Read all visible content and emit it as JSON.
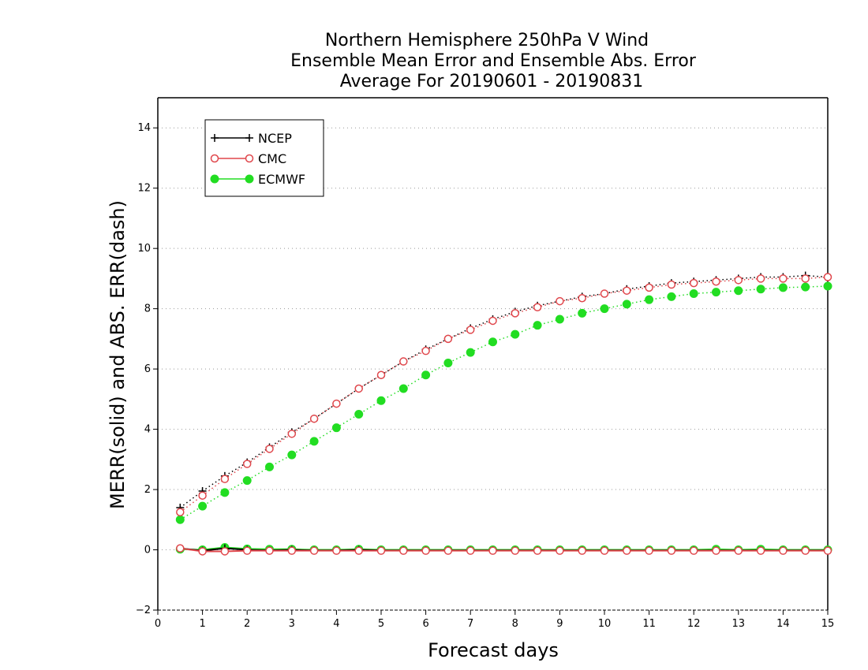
{
  "chart_data": {
    "type": "line",
    "title_lines": [
      "Northern Hemisphere 250hPa V Wind",
      "Ensemble Mean Error and Ensemble Abs. Error",
      "Average For 20190601 - 20190831"
    ],
    "xlabel": "Forecast days",
    "ylabel": "MERR(solid) and ABS. ERR(dash)",
    "xlim": [
      0,
      15
    ],
    "ylim": [
      -2,
      15
    ],
    "x_ticks": [
      0,
      1,
      2,
      3,
      4,
      5,
      6,
      7,
      8,
      9,
      10,
      11,
      12,
      13,
      14,
      15
    ],
    "y_ticks": [
      -2,
      0,
      2,
      4,
      6,
      8,
      10,
      12,
      14
    ],
    "grid": "horizontal dotted",
    "legend": {
      "position": "top-left",
      "entries": [
        "NCEP",
        "CMC",
        "ECMWF"
      ]
    },
    "x": [
      0.5,
      1,
      1.5,
      2,
      2.5,
      3,
      3.5,
      4,
      4.5,
      5,
      5.5,
      6,
      6.5,
      7,
      7.5,
      8,
      8.5,
      9,
      9.5,
      10,
      10.5,
      11,
      11.5,
      12,
      12.5,
      13,
      13.5,
      14,
      14.5,
      15
    ],
    "series": [
      {
        "name": "NCEP",
        "color": "#000000",
        "marker": "plus",
        "abs_err": [
          1.4,
          1.95,
          2.45,
          2.9,
          3.4,
          3.9,
          4.35,
          4.85,
          5.35,
          5.8,
          6.25,
          6.65,
          7.0,
          7.35,
          7.65,
          7.9,
          8.1,
          8.25,
          8.4,
          8.5,
          8.65,
          8.75,
          8.85,
          8.9,
          8.95,
          9.0,
          9.05,
          9.05,
          9.1,
          9.05
        ],
        "mean_err": [
          0.05,
          -0.03,
          0.05,
          0.0,
          -0.02,
          0.0,
          -0.02,
          -0.02,
          0.0,
          -0.02,
          -0.02,
          -0.02,
          -0.02,
          -0.02,
          -0.02,
          -0.02,
          -0.02,
          -0.02,
          -0.02,
          -0.02,
          -0.02,
          -0.02,
          -0.02,
          -0.02,
          -0.02,
          -0.02,
          -0.02,
          -0.02,
          -0.02,
          -0.02
        ]
      },
      {
        "name": "CMC",
        "color": "#e0474c",
        "marker": "open-circle",
        "abs_err": [
          1.25,
          1.8,
          2.35,
          2.85,
          3.35,
          3.85,
          4.35,
          4.85,
          5.35,
          5.8,
          6.25,
          6.6,
          7.0,
          7.3,
          7.6,
          7.85,
          8.05,
          8.25,
          8.35,
          8.5,
          8.6,
          8.7,
          8.8,
          8.85,
          8.9,
          8.95,
          9.0,
          9.0,
          9.0,
          9.05
        ],
        "mean_err": [
          0.05,
          -0.05,
          -0.05,
          -0.03,
          -0.03,
          -0.03,
          -0.03,
          -0.03,
          -0.03,
          -0.03,
          -0.03,
          -0.03,
          -0.03,
          -0.03,
          -0.03,
          -0.03,
          -0.03,
          -0.03,
          -0.03,
          -0.03,
          -0.03,
          -0.03,
          -0.03,
          -0.03,
          -0.03,
          -0.03,
          -0.03,
          -0.03,
          -0.03,
          -0.03
        ]
      },
      {
        "name": "ECMWF",
        "color": "#22dd22",
        "marker": "filled-circle",
        "abs_err": [
          1.0,
          1.45,
          1.9,
          2.3,
          2.75,
          3.15,
          3.6,
          4.05,
          4.5,
          4.95,
          5.35,
          5.8,
          6.2,
          6.55,
          6.9,
          7.15,
          7.45,
          7.65,
          7.85,
          8.0,
          8.15,
          8.3,
          8.4,
          8.5,
          8.55,
          8.6,
          8.65,
          8.7,
          8.72,
          8.75
        ],
        "mean_err": [
          0.02,
          0.0,
          0.08,
          0.03,
          0.02,
          0.02,
          0.0,
          0.0,
          0.02,
          0.0,
          0.0,
          0.0,
          0.0,
          0.0,
          0.0,
          0.0,
          0.0,
          0.0,
          0.0,
          0.0,
          0.0,
          0.0,
          0.0,
          0.0,
          0.02,
          0.0,
          0.02,
          0.0,
          0.0,
          0.0
        ]
      }
    ]
  }
}
